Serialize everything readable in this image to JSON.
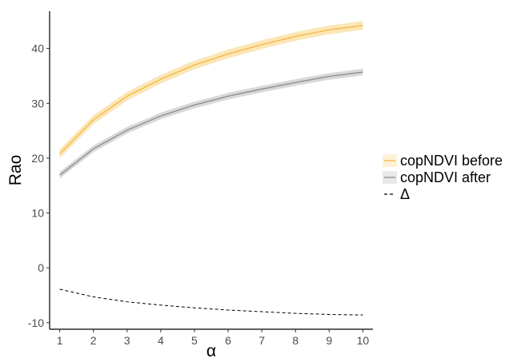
{
  "chart_data": {
    "type": "line",
    "xlabel": "α",
    "ylabel": "Rao",
    "x": [
      1,
      2,
      3,
      4,
      5,
      6,
      7,
      8,
      9,
      10
    ],
    "xlim": [
      0.7,
      10.3
    ],
    "ylim": [
      -11.2,
      46.8
    ],
    "xticks": [
      1,
      2,
      3,
      4,
      5,
      6,
      7,
      8,
      9,
      10
    ],
    "yticks": [
      -10,
      0,
      10,
      20,
      30,
      40
    ],
    "grid": false,
    "legend_position": "right",
    "series": [
      {
        "name": "copNDVI before",
        "values": [
          20.8,
          27.0,
          31.3,
          34.4,
          37.0,
          39.0,
          40.7,
          42.2,
          43.4,
          44.2
        ],
        "ribbon_halfwidth": 0.8,
        "color": "#f5b83d",
        "ribbon_color": "#fbe3b0",
        "line_style": "solid"
      },
      {
        "name": "copNDVI after",
        "values": [
          16.9,
          21.7,
          25.1,
          27.7,
          29.7,
          31.3,
          32.6,
          33.8,
          34.9,
          35.7
        ],
        "ribbon_halfwidth": 0.6,
        "color": "#8c8c8c",
        "ribbon_color": "#d4d4d4",
        "line_style": "solid"
      },
      {
        "name": "Δ",
        "values": [
          -3.9,
          -5.3,
          -6.2,
          -6.8,
          -7.3,
          -7.7,
          -8.0,
          -8.3,
          -8.5,
          -8.6
        ],
        "color": "#000000",
        "line_style": "dashed"
      }
    ]
  }
}
